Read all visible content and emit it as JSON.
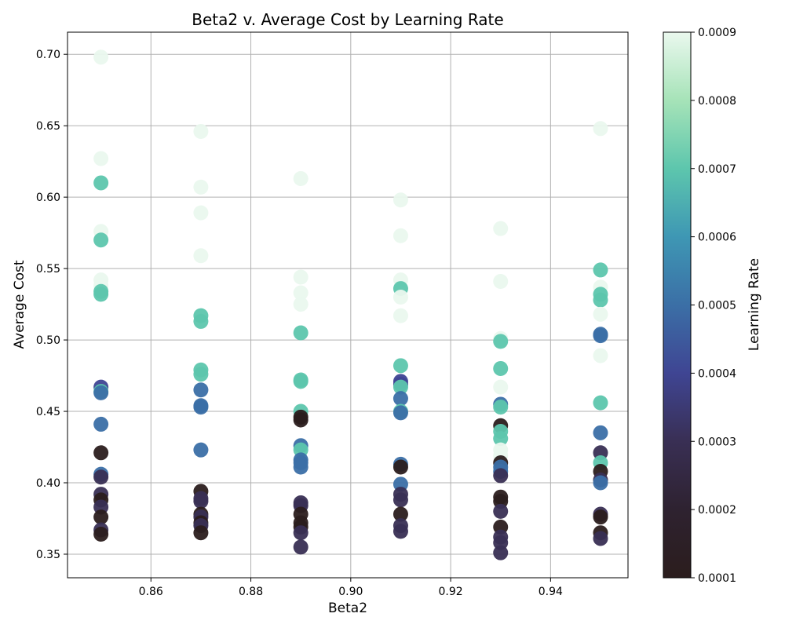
{
  "chart_data": {
    "type": "scatter",
    "title": "Beta2 v. Average Cost by Learning Rate",
    "xlabel": "Beta2",
    "ylabel": "Average Cost",
    "xlim": [
      0.8433,
      0.9555
    ],
    "ylim": [
      0.3335,
      0.7155
    ],
    "x_ticks": [
      0.86,
      0.88,
      0.9,
      0.92,
      0.94
    ],
    "x_tick_labels": [
      "0.86",
      "0.88",
      "0.90",
      "0.92",
      "0.94"
    ],
    "y_ticks": [
      0.35,
      0.4,
      0.45,
      0.5,
      0.55,
      0.6,
      0.65,
      0.7
    ],
    "y_tick_labels": [
      "0.35",
      "0.40",
      "0.45",
      "0.50",
      "0.55",
      "0.60",
      "0.65",
      "0.70"
    ],
    "grid": true,
    "colorbar": {
      "label": "Learning Rate",
      "min": 0.0001,
      "max": 0.0009,
      "ticks": [
        0.0001,
        0.0002,
        0.0003,
        0.0004,
        0.0005,
        0.0006,
        0.0007,
        0.0008,
        0.0009
      ],
      "tick_labels": [
        "0.0001",
        "0.0002",
        "0.0003",
        "0.0004",
        "0.0005",
        "0.0006",
        "0.0007",
        "0.0008",
        "0.0009"
      ],
      "colormap": [
        "#2b1d1d",
        "#2e2230",
        "#392f54",
        "#3f4593",
        "#3b6fa6",
        "#3e97b4",
        "#5dc6ad",
        "#a6e3b8",
        "#eaf8ee"
      ]
    },
    "points": [
      {
        "x": 0.85,
        "y": 0.698,
        "c": 0.0009
      },
      {
        "x": 0.85,
        "y": 0.627,
        "c": 0.0009
      },
      {
        "x": 0.85,
        "y": 0.61,
        "c": 0.0007
      },
      {
        "x": 0.85,
        "y": 0.576,
        "c": 0.0009
      },
      {
        "x": 0.85,
        "y": 0.57,
        "c": 0.0007
      },
      {
        "x": 0.85,
        "y": 0.542,
        "c": 0.0009
      },
      {
        "x": 0.85,
        "y": 0.538,
        "c": 0.0009
      },
      {
        "x": 0.85,
        "y": 0.534,
        "c": 0.0007
      },
      {
        "x": 0.85,
        "y": 0.532,
        "c": 0.0007
      },
      {
        "x": 0.85,
        "y": 0.467,
        "c": 0.0004
      },
      {
        "x": 0.85,
        "y": 0.464,
        "c": 0.0007
      },
      {
        "x": 0.85,
        "y": 0.463,
        "c": 0.0005
      },
      {
        "x": 0.85,
        "y": 0.441,
        "c": 0.0005
      },
      {
        "x": 0.85,
        "y": 0.421,
        "c": 0.0001
      },
      {
        "x": 0.85,
        "y": 0.406,
        "c": 0.0005
      },
      {
        "x": 0.85,
        "y": 0.404,
        "c": 0.0003
      },
      {
        "x": 0.85,
        "y": 0.392,
        "c": 0.0003
      },
      {
        "x": 0.85,
        "y": 0.388,
        "c": 0.0001
      },
      {
        "x": 0.85,
        "y": 0.383,
        "c": 0.0003
      },
      {
        "x": 0.85,
        "y": 0.376,
        "c": 0.0001
      },
      {
        "x": 0.85,
        "y": 0.367,
        "c": 0.0003
      },
      {
        "x": 0.85,
        "y": 0.364,
        "c": 0.0001
      },
      {
        "x": 0.87,
        "y": 0.646,
        "c": 0.0009
      },
      {
        "x": 0.87,
        "y": 0.607,
        "c": 0.0009
      },
      {
        "x": 0.87,
        "y": 0.589,
        "c": 0.0009
      },
      {
        "x": 0.87,
        "y": 0.559,
        "c": 0.0009
      },
      {
        "x": 0.87,
        "y": 0.517,
        "c": 0.0007
      },
      {
        "x": 0.87,
        "y": 0.513,
        "c": 0.0007
      },
      {
        "x": 0.87,
        "y": 0.479,
        "c": 0.0007
      },
      {
        "x": 0.87,
        "y": 0.476,
        "c": 0.0007
      },
      {
        "x": 0.87,
        "y": 0.465,
        "c": 0.0005
      },
      {
        "x": 0.87,
        "y": 0.454,
        "c": 0.0005
      },
      {
        "x": 0.87,
        "y": 0.453,
        "c": 0.0005
      },
      {
        "x": 0.87,
        "y": 0.423,
        "c": 0.0005
      },
      {
        "x": 0.87,
        "y": 0.394,
        "c": 0.0001
      },
      {
        "x": 0.87,
        "y": 0.389,
        "c": 0.0003
      },
      {
        "x": 0.87,
        "y": 0.387,
        "c": 0.0003
      },
      {
        "x": 0.87,
        "y": 0.378,
        "c": 0.0001
      },
      {
        "x": 0.87,
        "y": 0.376,
        "c": 0.0003
      },
      {
        "x": 0.87,
        "y": 0.372,
        "c": 0.0001
      },
      {
        "x": 0.87,
        "y": 0.37,
        "c": 0.0003
      },
      {
        "x": 0.87,
        "y": 0.365,
        "c": 0.0001
      },
      {
        "x": 0.89,
        "y": 0.613,
        "c": 0.0009
      },
      {
        "x": 0.89,
        "y": 0.544,
        "c": 0.0009
      },
      {
        "x": 0.89,
        "y": 0.533,
        "c": 0.0009
      },
      {
        "x": 0.89,
        "y": 0.525,
        "c": 0.0009
      },
      {
        "x": 0.89,
        "y": 0.505,
        "c": 0.0007
      },
      {
        "x": 0.89,
        "y": 0.472,
        "c": 0.0007
      },
      {
        "x": 0.89,
        "y": 0.471,
        "c": 0.0007
      },
      {
        "x": 0.89,
        "y": 0.45,
        "c": 0.0007
      },
      {
        "x": 0.89,
        "y": 0.446,
        "c": 0.0001
      },
      {
        "x": 0.89,
        "y": 0.444,
        "c": 0.0001
      },
      {
        "x": 0.89,
        "y": 0.426,
        "c": 0.0005
      },
      {
        "x": 0.89,
        "y": 0.423,
        "c": 0.0007
      },
      {
        "x": 0.89,
        "y": 0.416,
        "c": 0.0005
      },
      {
        "x": 0.89,
        "y": 0.414,
        "c": 0.0005
      },
      {
        "x": 0.89,
        "y": 0.411,
        "c": 0.0005
      },
      {
        "x": 0.89,
        "y": 0.386,
        "c": 0.0003
      },
      {
        "x": 0.89,
        "y": 0.384,
        "c": 0.0003
      },
      {
        "x": 0.89,
        "y": 0.378,
        "c": 0.0001
      },
      {
        "x": 0.89,
        "y": 0.372,
        "c": 0.0001
      },
      {
        "x": 0.89,
        "y": 0.369,
        "c": 0.0001
      },
      {
        "x": 0.89,
        "y": 0.365,
        "c": 0.0003
      },
      {
        "x": 0.89,
        "y": 0.355,
        "c": 0.0003
      },
      {
        "x": 0.91,
        "y": 0.598,
        "c": 0.0009
      },
      {
        "x": 0.91,
        "y": 0.573,
        "c": 0.0009
      },
      {
        "x": 0.91,
        "y": 0.542,
        "c": 0.0009
      },
      {
        "x": 0.91,
        "y": 0.536,
        "c": 0.0007
      },
      {
        "x": 0.91,
        "y": 0.53,
        "c": 0.0009
      },
      {
        "x": 0.91,
        "y": 0.517,
        "c": 0.0009
      },
      {
        "x": 0.91,
        "y": 0.482,
        "c": 0.0007
      },
      {
        "x": 0.91,
        "y": 0.471,
        "c": 0.0004
      },
      {
        "x": 0.91,
        "y": 0.469,
        "c": 0.0004
      },
      {
        "x": 0.91,
        "y": 0.467,
        "c": 0.0007
      },
      {
        "x": 0.91,
        "y": 0.459,
        "c": 0.0005
      },
      {
        "x": 0.91,
        "y": 0.45,
        "c": 0.0007
      },
      {
        "x": 0.91,
        "y": 0.449,
        "c": 0.0005
      },
      {
        "x": 0.91,
        "y": 0.413,
        "c": 0.0005
      },
      {
        "x": 0.91,
        "y": 0.411,
        "c": 0.0001
      },
      {
        "x": 0.91,
        "y": 0.399,
        "c": 0.0005
      },
      {
        "x": 0.91,
        "y": 0.392,
        "c": 0.0003
      },
      {
        "x": 0.91,
        "y": 0.388,
        "c": 0.0003
      },
      {
        "x": 0.91,
        "y": 0.378,
        "c": 0.0001
      },
      {
        "x": 0.91,
        "y": 0.37,
        "c": 0.0003
      },
      {
        "x": 0.91,
        "y": 0.366,
        "c": 0.0003
      },
      {
        "x": 0.93,
        "y": 0.578,
        "c": 0.0009
      },
      {
        "x": 0.93,
        "y": 0.541,
        "c": 0.0009
      },
      {
        "x": 0.93,
        "y": 0.501,
        "c": 0.0009
      },
      {
        "x": 0.93,
        "y": 0.499,
        "c": 0.0007
      },
      {
        "x": 0.93,
        "y": 0.48,
        "c": 0.0007
      },
      {
        "x": 0.93,
        "y": 0.467,
        "c": 0.0009
      },
      {
        "x": 0.93,
        "y": 0.455,
        "c": 0.0005
      },
      {
        "x": 0.93,
        "y": 0.453,
        "c": 0.0007
      },
      {
        "x": 0.93,
        "y": 0.44,
        "c": 0.0001
      },
      {
        "x": 0.93,
        "y": 0.436,
        "c": 0.0007
      },
      {
        "x": 0.93,
        "y": 0.431,
        "c": 0.0007
      },
      {
        "x": 0.93,
        "y": 0.423,
        "c": 0.0009
      },
      {
        "x": 0.93,
        "y": 0.419,
        "c": 0.0009
      },
      {
        "x": 0.93,
        "y": 0.414,
        "c": 0.0001
      },
      {
        "x": 0.93,
        "y": 0.411,
        "c": 0.0005
      },
      {
        "x": 0.93,
        "y": 0.408,
        "c": 0.0005
      },
      {
        "x": 0.93,
        "y": 0.405,
        "c": 0.0003
      },
      {
        "x": 0.93,
        "y": 0.39,
        "c": 0.0001
      },
      {
        "x": 0.93,
        "y": 0.387,
        "c": 0.0001
      },
      {
        "x": 0.93,
        "y": 0.38,
        "c": 0.0003
      },
      {
        "x": 0.93,
        "y": 0.369,
        "c": 0.0001
      },
      {
        "x": 0.93,
        "y": 0.362,
        "c": 0.0003
      },
      {
        "x": 0.93,
        "y": 0.358,
        "c": 0.0003
      },
      {
        "x": 0.93,
        "y": 0.351,
        "c": 0.0003
      },
      {
        "x": 0.95,
        "y": 0.648,
        "c": 0.0009
      },
      {
        "x": 0.95,
        "y": 0.549,
        "c": 0.0007
      },
      {
        "x": 0.95,
        "y": 0.537,
        "c": 0.0009
      },
      {
        "x": 0.95,
        "y": 0.532,
        "c": 0.0007
      },
      {
        "x": 0.95,
        "y": 0.528,
        "c": 0.0007
      },
      {
        "x": 0.95,
        "y": 0.518,
        "c": 0.0009
      },
      {
        "x": 0.95,
        "y": 0.504,
        "c": 0.0005
      },
      {
        "x": 0.95,
        "y": 0.503,
        "c": 0.0005
      },
      {
        "x": 0.95,
        "y": 0.489,
        "c": 0.0009
      },
      {
        "x": 0.95,
        "y": 0.456,
        "c": 0.0007
      },
      {
        "x": 0.95,
        "y": 0.435,
        "c": 0.0005
      },
      {
        "x": 0.95,
        "y": 0.421,
        "c": 0.0003
      },
      {
        "x": 0.95,
        "y": 0.414,
        "c": 0.0007
      },
      {
        "x": 0.95,
        "y": 0.408,
        "c": 0.0001
      },
      {
        "x": 0.95,
        "y": 0.402,
        "c": 0.0003
      },
      {
        "x": 0.95,
        "y": 0.4,
        "c": 0.0005
      },
      {
        "x": 0.95,
        "y": 0.378,
        "c": 0.0003
      },
      {
        "x": 0.95,
        "y": 0.376,
        "c": 0.0001
      },
      {
        "x": 0.95,
        "y": 0.365,
        "c": 0.0001
      },
      {
        "x": 0.95,
        "y": 0.361,
        "c": 0.0003
      }
    ]
  }
}
